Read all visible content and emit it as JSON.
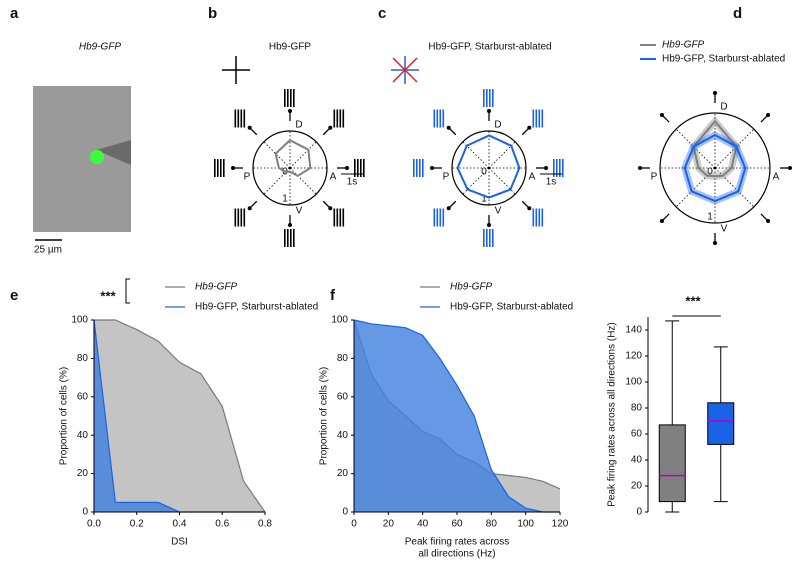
{
  "image_panel": {
    "label": "a",
    "title": "Hb9-GFP",
    "scale_bar": "25 µm"
  },
  "chart_data": [
    {
      "type": "polar",
      "label": "b",
      "title": "Hb9-GFP",
      "categories": [
        "D",
        null,
        "A",
        null,
        "V",
        null,
        "P",
        null
      ],
      "values": [
        0.75,
        0.7,
        0.55,
        0.3,
        0.1,
        0.15,
        0.3,
        0.55
      ],
      "color": "#808080",
      "rlim": [
        0,
        1
      ],
      "rticks": [
        0,
        1
      ],
      "time_bar": "1s",
      "raster_color": "#000000"
    },
    {
      "type": "polar",
      "label": "c",
      "title": "Hb9-GFP, Starburst-ablated",
      "categories": [
        "D",
        null,
        "A",
        null,
        "V",
        null,
        "P",
        null
      ],
      "values": [
        0.88,
        0.85,
        0.82,
        0.82,
        0.8,
        0.82,
        0.85,
        0.85
      ],
      "color": "#1a63e6",
      "rlim": [
        0,
        1
      ],
      "rticks": [
        0,
        1
      ],
      "time_bar": "1s",
      "raster_color": "#1a63e6"
    },
    {
      "type": "polar",
      "label": "d",
      "categories": [
        "D",
        null,
        "A",
        null,
        "V",
        null,
        "P",
        null
      ],
      "rlim": [
        0,
        1
      ],
      "rticks": [
        0,
        1
      ],
      "series": [
        {
          "name": "Hb9-GFP",
          "color": "#808080",
          "values": [
            0.85,
            0.55,
            0.3,
            0.2,
            0.15,
            0.2,
            0.3,
            0.55
          ]
        },
        {
          "name": "Hb9-GFP, Starburst-ablated",
          "color": "#1a63e6",
          "values": [
            0.6,
            0.55,
            0.55,
            0.6,
            0.6,
            0.6,
            0.55,
            0.55
          ]
        }
      ]
    },
    {
      "type": "area",
      "label": "e",
      "xlabel": [
        "DSI"
      ],
      "ylabel": "Proportion of cells (%)",
      "annotation": "***",
      "xlim": [
        0,
        0.8
      ],
      "ylim": [
        0,
        100
      ],
      "xticks": [
        {
          "value": 0,
          "label": "0.0"
        },
        0.2,
        0.4,
        0.6,
        0.8
      ],
      "yticks": [
        0,
        20,
        40,
        60,
        80,
        100
      ],
      "series": [
        {
          "name": "Hb9-GFP",
          "color": "#7a7a7a",
          "fill": "#c4c4c4",
          "x": [
            0,
            0.1,
            0.2,
            0.3,
            0.4,
            0.5,
            0.6,
            0.7,
            0.8
          ],
          "values": [
            100,
            100,
            95,
            89,
            78,
            72,
            55,
            16,
            0
          ]
        },
        {
          "name": "Hb9-GFP, Starburst-ablated",
          "color": "#1a63e6",
          "fill": "#3f7fe0",
          "x": [
            0,
            0.1,
            0.3,
            0.4,
            0.8
          ],
          "values": [
            100,
            5,
            5,
            0,
            0
          ]
        }
      ]
    },
    {
      "type": "area",
      "label": "f",
      "xlabel": [
        "Peak firing rates across",
        "all directions (Hz)"
      ],
      "ylabel": "Proportion of cells (%)",
      "xlim": [
        0,
        120
      ],
      "ylim": [
        0,
        100
      ],
      "xticks": [
        0,
        20,
        40,
        60,
        80,
        100,
        120
      ],
      "yticks": [
        0,
        20,
        40,
        60,
        80,
        100
      ],
      "series": [
        {
          "name": "Hb9-GFP",
          "color": "#7a7a7a",
          "fill": "#c4c4c4",
          "x": [
            0,
            10,
            20,
            30,
            40,
            50,
            60,
            70,
            80,
            90,
            100,
            110,
            120
          ],
          "values": [
            100,
            72,
            58,
            50,
            42,
            38,
            30,
            26,
            20,
            19,
            18,
            16,
            12
          ]
        },
        {
          "name": "Hb9-GFP, Starburst-ablated",
          "color": "#1a63e6",
          "fill": "#3f7fe0",
          "x": [
            0,
            10,
            20,
            30,
            40,
            50,
            60,
            70,
            80,
            90,
            100,
            110,
            120
          ],
          "values": [
            100,
            98,
            97,
            96,
            92,
            80,
            66,
            50,
            22,
            8,
            2,
            0,
            0
          ]
        }
      ]
    },
    {
      "type": "box",
      "ylabel": "Peak firing rates across all directions (Hz)",
      "annotation": "***",
      "ylim": [
        0,
        150
      ],
      "yticks": [
        0,
        20,
        40,
        60,
        80,
        100,
        120,
        140
      ],
      "median_color": "#c000c0",
      "boxes": [
        {
          "min": 0,
          "q1": 8,
          "median": 28,
          "q3": 67,
          "max": 147,
          "color": "#808080"
        },
        {
          "min": 8,
          "q1": 52,
          "median": 70,
          "q3": 84,
          "max": 127,
          "color": "#1a63e6"
        }
      ]
    }
  ]
}
